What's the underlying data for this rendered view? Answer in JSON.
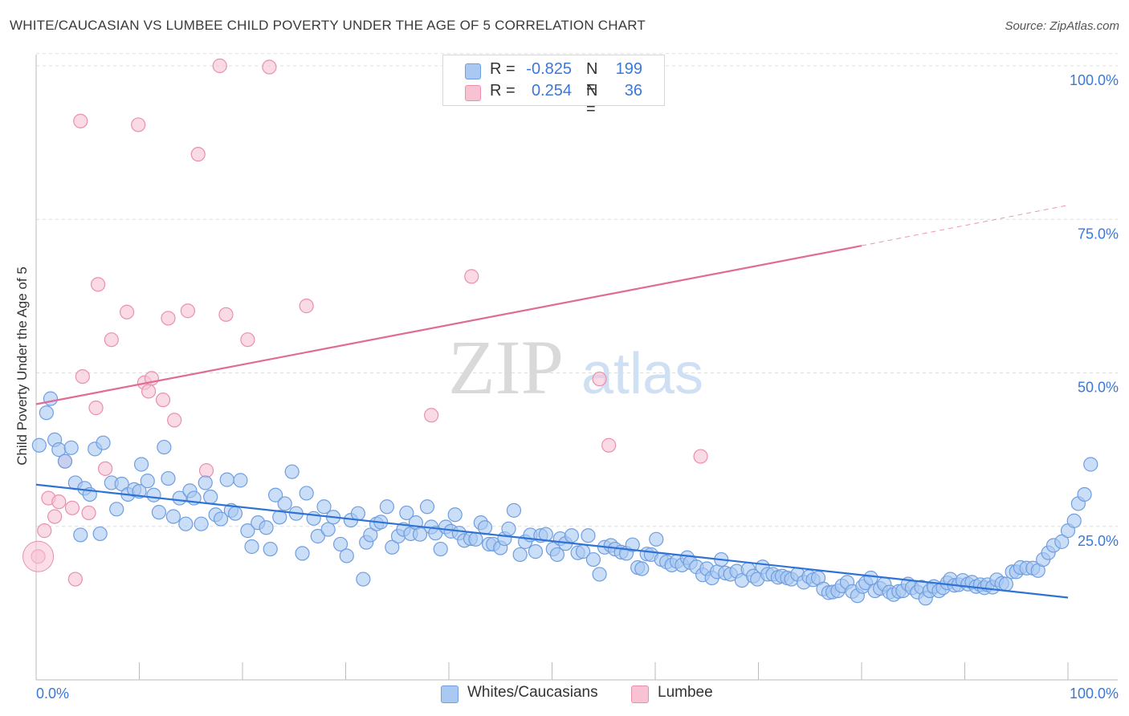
{
  "title": "WHITE/CAUCASIAN VS LUMBEE CHILD POVERTY UNDER THE AGE OF 5 CORRELATION CHART",
  "source": "Source: ZipAtlas.com",
  "watermark": {
    "zip": "ZIP",
    "atlas": "atlas"
  },
  "legend": {
    "rows": [
      {
        "r_label": "R =",
        "r_value": "-0.825",
        "n_label": "N =",
        "n_value": "199"
      },
      {
        "r_label": "R =",
        "r_value": "0.254",
        "n_label": "N =",
        "n_value": "36"
      }
    ]
  },
  "bottom_legend": [
    "Whites/Caucasians",
    "Lumbee"
  ],
  "colors": {
    "blue_fill": "#a9c8f2",
    "blue_stroke": "#6f9ee0",
    "blue_line": "#2f72d6",
    "pink_fill": "#f7c3d3",
    "pink_stroke": "#ea8fad",
    "pink_line": "#e06b97",
    "tick_label": "#3b78d8",
    "grid": "#dddddd"
  },
  "chart_data": {
    "type": "scatter",
    "title": "WHITE/CAUCASIAN VS LUMBEE CHILD POVERTY UNDER THE AGE OF 5 CORRELATION CHART",
    "xlabel": "",
    "ylabel": "Child Poverty Under the Age of 5",
    "xlim": [
      0,
      100
    ],
    "ylim": [
      0,
      102
    ],
    "x_tick_labels": [
      "0.0%",
      "100.0%"
    ],
    "y_ticks": [
      25,
      50,
      75,
      100
    ],
    "y_tick_labels": [
      "25.0%",
      "50.0%",
      "75.0%",
      "100.0%"
    ],
    "grid": true,
    "legend_position": "top-center",
    "series": [
      {
        "name": "Whites/Caucasians",
        "r": -0.825,
        "n": 199,
        "trend": {
          "x0": 0,
          "y0": 31.8,
          "x1": 100,
          "y1": 13.4
        },
        "points": [
          [
            0.3,
            38.2
          ],
          [
            1,
            43.5
          ],
          [
            1.4,
            45.8
          ],
          [
            1.8,
            39.1
          ],
          [
            2.2,
            37.5
          ],
          [
            2.8,
            35.6
          ],
          [
            3.4,
            37.8
          ],
          [
            3.8,
            32.1
          ],
          [
            4.3,
            23.6
          ],
          [
            4.7,
            31.2
          ],
          [
            5.2,
            30.2
          ],
          [
            5.7,
            37.6
          ],
          [
            6.2,
            23.8
          ],
          [
            6.5,
            38.6
          ],
          [
            7.3,
            32.1
          ],
          [
            7.8,
            27.8
          ],
          [
            8.3,
            31.9
          ],
          [
            8.9,
            30.2
          ],
          [
            9.5,
            31.0
          ],
          [
            10.0,
            30.7
          ],
          [
            10.2,
            35.1
          ],
          [
            10.8,
            32.4
          ],
          [
            11.4,
            30.1
          ],
          [
            11.9,
            27.3
          ],
          [
            12.4,
            37.9
          ],
          [
            12.8,
            32.8
          ],
          [
            13.3,
            26.6
          ],
          [
            13.9,
            29.6
          ],
          [
            14.5,
            25.4
          ],
          [
            14.9,
            30.8
          ],
          [
            15.3,
            29.6
          ],
          [
            16.0,
            25.4
          ],
          [
            16.4,
            32.1
          ],
          [
            16.9,
            29.8
          ],
          [
            17.4,
            26.9
          ],
          [
            17.9,
            26.2
          ],
          [
            18.5,
            32.6
          ],
          [
            18.9,
            27.6
          ],
          [
            19.3,
            27.1
          ],
          [
            19.8,
            32.5
          ],
          [
            20.5,
            24.3
          ],
          [
            20.9,
            21.7
          ],
          [
            21.5,
            25.6
          ],
          [
            22.3,
            24.8
          ],
          [
            22.7,
            21.3
          ],
          [
            23.2,
            30.1
          ],
          [
            23.6,
            26.5
          ],
          [
            24.1,
            28.7
          ],
          [
            24.8,
            33.9
          ],
          [
            25.2,
            27.1
          ],
          [
            25.8,
            20.6
          ],
          [
            26.2,
            30.4
          ],
          [
            26.9,
            26.3
          ],
          [
            27.3,
            23.4
          ],
          [
            27.9,
            28.2
          ],
          [
            28.3,
            24.5
          ],
          [
            28.8,
            26.5
          ],
          [
            29.5,
            22.1
          ],
          [
            30.1,
            20.2
          ],
          [
            30.5,
            26.0
          ],
          [
            31.2,
            27.1
          ],
          [
            31.7,
            16.4
          ],
          [
            32.0,
            22.4
          ],
          [
            32.4,
            23.6
          ],
          [
            33.0,
            25.4
          ],
          [
            33.4,
            25.7
          ],
          [
            34.0,
            28.2
          ],
          [
            34.5,
            21.6
          ],
          [
            35.1,
            23.4
          ],
          [
            35.6,
            24.5
          ],
          [
            35.9,
            27.2
          ],
          [
            36.3,
            23.8
          ],
          [
            36.8,
            25.6
          ],
          [
            37.2,
            23.7
          ],
          [
            37.9,
            28.2
          ],
          [
            38.3,
            24.9
          ],
          [
            38.7,
            23.9
          ],
          [
            39.2,
            21.3
          ],
          [
            39.7,
            24.9
          ],
          [
            40.2,
            24.2
          ],
          [
            40.6,
            26.9
          ],
          [
            41.0,
            23.9
          ],
          [
            41.5,
            22.7
          ],
          [
            42.1,
            23.0
          ],
          [
            42.6,
            22.9
          ],
          [
            43.1,
            25.6
          ],
          [
            43.5,
            24.8
          ],
          [
            43.9,
            22.1
          ],
          [
            44.3,
            22.1
          ],
          [
            45.0,
            21.5
          ],
          [
            45.4,
            23.0
          ],
          [
            45.8,
            24.6
          ],
          [
            46.3,
            27.6
          ],
          [
            46.9,
            20.4
          ],
          [
            47.4,
            22.5
          ],
          [
            47.9,
            23.6
          ],
          [
            48.4,
            20.9
          ],
          [
            48.9,
            23.5
          ],
          [
            49.4,
            23.7
          ],
          [
            50.1,
            21.3
          ],
          [
            50.5,
            20.4
          ],
          [
            50.8,
            23.0
          ],
          [
            51.3,
            22.2
          ],
          [
            51.9,
            23.5
          ],
          [
            52.5,
            20.7
          ],
          [
            53.0,
            20.9
          ],
          [
            53.5,
            23.5
          ],
          [
            54.0,
            19.6
          ],
          [
            54.6,
            17.2
          ],
          [
            55.1,
            21.6
          ],
          [
            55.7,
            21.9
          ],
          [
            56.1,
            21.3
          ],
          [
            56.7,
            20.8
          ],
          [
            57.2,
            20.6
          ],
          [
            57.8,
            22.0
          ],
          [
            58.3,
            18.3
          ],
          [
            58.7,
            18.1
          ],
          [
            59.2,
            20.5
          ],
          [
            59.6,
            20.4
          ],
          [
            60.1,
            22.9
          ],
          [
            60.6,
            19.6
          ],
          [
            61.1,
            19.2
          ],
          [
            61.6,
            18.7
          ],
          [
            62.1,
            19.3
          ],
          [
            62.6,
            18.7
          ],
          [
            63.1,
            19.9
          ],
          [
            63.4,
            19.1
          ],
          [
            64.0,
            18.4
          ],
          [
            64.6,
            17.1
          ],
          [
            65.0,
            18.1
          ],
          [
            65.5,
            16.6
          ],
          [
            66.0,
            17.6
          ],
          [
            66.4,
            19.6
          ],
          [
            66.8,
            17.4
          ],
          [
            67.3,
            17.2
          ],
          [
            67.9,
            17.7
          ],
          [
            68.4,
            16.2
          ],
          [
            69.0,
            18.0
          ],
          [
            69.5,
            16.9
          ],
          [
            69.9,
            16.4
          ],
          [
            70.4,
            18.4
          ],
          [
            70.9,
            17.2
          ],
          [
            71.4,
            17.2
          ],
          [
            71.9,
            16.7
          ],
          [
            72.3,
            16.9
          ],
          [
            72.8,
            16.6
          ],
          [
            73.2,
            16.4
          ],
          [
            73.8,
            17.2
          ],
          [
            74.4,
            15.9
          ],
          [
            74.9,
            16.8
          ],
          [
            75.3,
            16.3
          ],
          [
            75.8,
            16.6
          ],
          [
            76.3,
            14.8
          ],
          [
            76.8,
            14.2
          ],
          [
            77.2,
            14.3
          ],
          [
            77.7,
            14.5
          ],
          [
            78.1,
            15.3
          ],
          [
            78.6,
            15.9
          ],
          [
            79.1,
            14.4
          ],
          [
            79.6,
            13.7
          ],
          [
            80.1,
            15.2
          ],
          [
            80.4,
            15.8
          ],
          [
            80.9,
            16.6
          ],
          [
            81.3,
            14.5
          ],
          [
            81.8,
            14.9
          ],
          [
            82.2,
            15.6
          ],
          [
            82.7,
            14.3
          ],
          [
            83.1,
            13.9
          ],
          [
            83.6,
            14.4
          ],
          [
            84.0,
            14.5
          ],
          [
            84.5,
            15.6
          ],
          [
            84.9,
            15.0
          ],
          [
            85.4,
            14.3
          ],
          [
            85.8,
            15.1
          ],
          [
            86.2,
            13.3
          ],
          [
            86.6,
            14.5
          ],
          [
            87.0,
            15.2
          ],
          [
            87.5,
            14.5
          ],
          [
            87.9,
            15.0
          ],
          [
            88.3,
            15.8
          ],
          [
            88.6,
            16.4
          ],
          [
            89.0,
            15.4
          ],
          [
            89.4,
            15.5
          ],
          [
            89.8,
            16.2
          ],
          [
            90.3,
            15.6
          ],
          [
            90.7,
            15.9
          ],
          [
            91.1,
            15.2
          ],
          [
            91.5,
            15.5
          ],
          [
            91.9,
            15.0
          ],
          [
            92.2,
            15.5
          ],
          [
            92.7,
            15.1
          ],
          [
            93.1,
            16.3
          ],
          [
            93.6,
            15.7
          ],
          [
            94.0,
            15.6
          ],
          [
            94.6,
            17.6
          ],
          [
            95.0,
            17.6
          ],
          [
            95.4,
            18.3
          ],
          [
            96.0,
            18.2
          ],
          [
            96.6,
            18.2
          ],
          [
            97.1,
            17.8
          ],
          [
            97.6,
            19.6
          ],
          [
            98.1,
            20.7
          ],
          [
            98.6,
            21.9
          ],
          [
            99.4,
            22.5
          ],
          [
            100.0,
            24.3
          ],
          [
            100.6,
            25.9
          ],
          [
            101.0,
            28.7
          ],
          [
            101.6,
            30.2
          ],
          [
            102.2,
            35.1
          ]
        ]
      },
      {
        "name": "Lumbee",
        "r": 0.254,
        "n": 36,
        "trend": {
          "x0": 0,
          "y0": 44.9,
          "x1": 80,
          "y1": 70.7,
          "dashed_to": {
            "x": 100,
            "y": 77.3
          }
        },
        "points": [
          [
            0.2,
            20.1
          ],
          [
            0.8,
            24.3
          ],
          [
            1.2,
            29.6
          ],
          [
            1.8,
            26.6
          ],
          [
            2.2,
            29.0
          ],
          [
            2.8,
            35.6
          ],
          [
            3.5,
            28.0
          ],
          [
            3.8,
            16.4
          ],
          [
            4.5,
            49.4
          ],
          [
            5.1,
            27.2
          ],
          [
            5.8,
            44.3
          ],
          [
            6.0,
            64.4
          ],
          [
            6.7,
            34.4
          ],
          [
            7.3,
            55.4
          ],
          [
            8.8,
            59.9
          ],
          [
            9.9,
            90.4
          ],
          [
            10.5,
            48.4
          ],
          [
            10.9,
            47.0
          ],
          [
            11.2,
            49.1
          ],
          [
            12.3,
            45.6
          ],
          [
            12.8,
            58.9
          ],
          [
            13.4,
            42.3
          ],
          [
            14.7,
            60.1
          ],
          [
            15.7,
            85.6
          ],
          [
            16.5,
            34.1
          ],
          [
            17.8,
            100.0
          ],
          [
            18.4,
            59.5
          ],
          [
            20.5,
            55.4
          ],
          [
            22.6,
            99.8
          ],
          [
            26.2,
            60.9
          ],
          [
            38.3,
            43.1
          ],
          [
            42.2,
            65.7
          ],
          [
            54.6,
            49.0
          ],
          [
            55.5,
            38.2
          ],
          [
            64.4,
            36.4
          ],
          [
            4.3,
            91.0
          ]
        ]
      }
    ]
  }
}
